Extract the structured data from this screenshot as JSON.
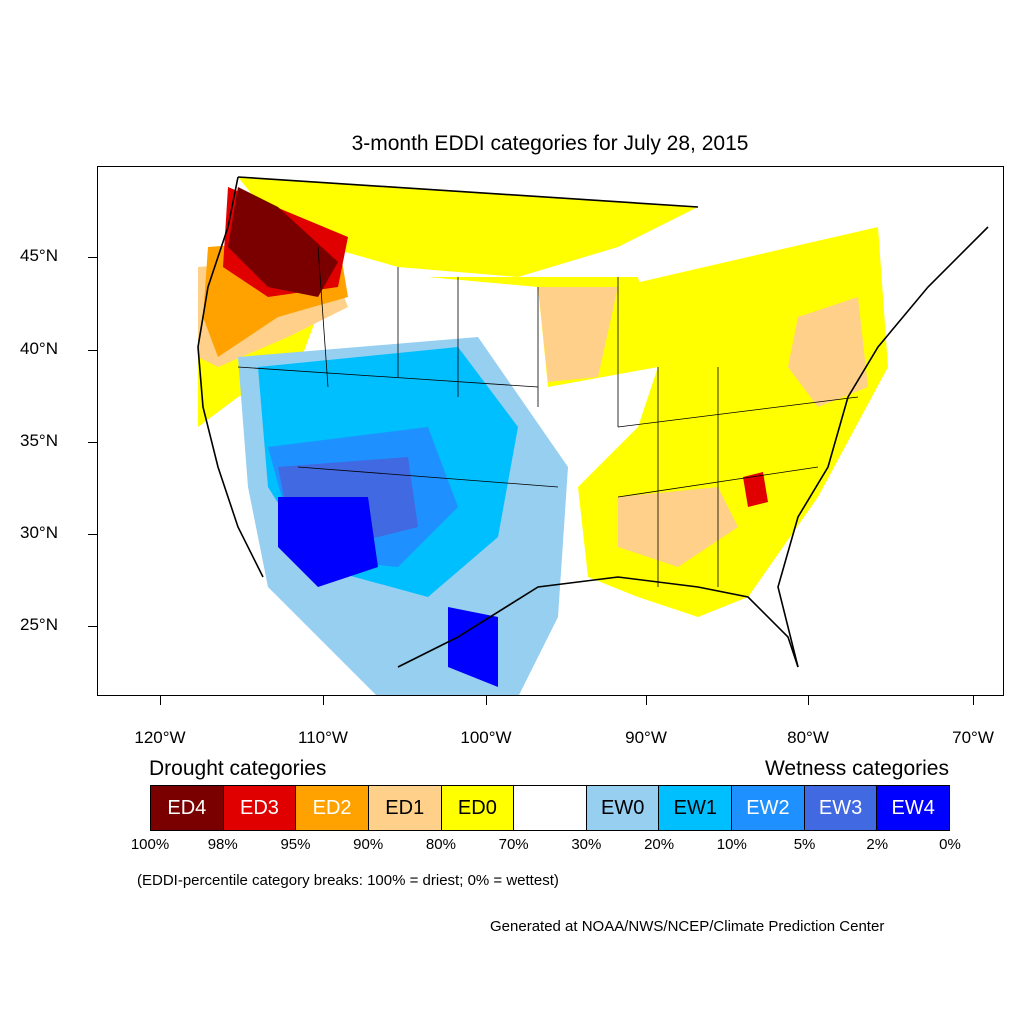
{
  "title": "3-month EDDI categories for July 28, 2015",
  "lat_labels": [
    "45°N",
    "40°N",
    "35°N",
    "30°N",
    "25°N"
  ],
  "lon_labels": [
    "120°W",
    "110°W",
    "100°W",
    "90°W",
    "80°W",
    "70°W"
  ],
  "legend": {
    "drought_title": "Drought categories",
    "wetness_title": "Wetness categories",
    "categories": [
      {
        "label": "ED4",
        "color": "#7a0000",
        "text_color": "#ffffff"
      },
      {
        "label": "ED3",
        "color": "#e00000",
        "text_color": "#ffffff"
      },
      {
        "label": "ED2",
        "color": "#ffa200",
        "text_color": "#ffffff"
      },
      {
        "label": "ED1",
        "color": "#ffd08a",
        "text_color": "#000000"
      },
      {
        "label": "ED0",
        "color": "#ffff00",
        "text_color": "#000000"
      },
      {
        "label": "",
        "color": "#ffffff",
        "text_color": "#000000"
      },
      {
        "label": "EW0",
        "color": "#96cff0",
        "text_color": "#000000"
      },
      {
        "label": "EW1",
        "color": "#00bfff",
        "text_color": "#000000"
      },
      {
        "label": "EW2",
        "color": "#1e90ff",
        "text_color": "#ffffff"
      },
      {
        "label": "EW3",
        "color": "#4169e1",
        "text_color": "#ffffff"
      },
      {
        "label": "EW4",
        "color": "#0000ff",
        "text_color": "#ffffff"
      }
    ],
    "percentiles": [
      "100%",
      "98%",
      "95%",
      "90%",
      "80%",
      "70%",
      "30%",
      "20%",
      "10%",
      "5%",
      "2%",
      "0%"
    ]
  },
  "note": "(EDDI-percentile category breaks: 100% = driest; 0% = wettest)",
  "credit": "Generated at NOAA/NWS/NCEP/Climate Prediction Center"
}
